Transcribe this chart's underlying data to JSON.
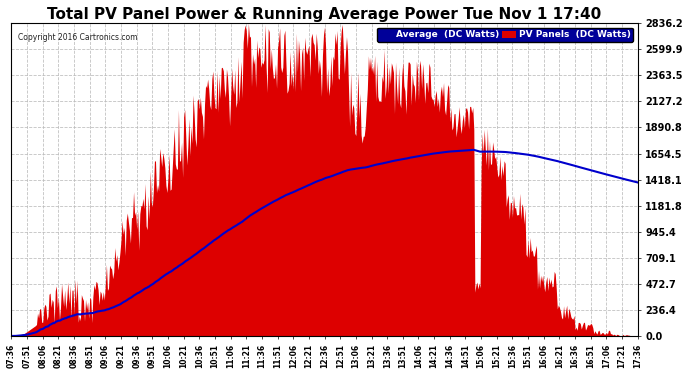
{
  "title": "Total PV Panel Power & Running Average Power Tue Nov 1 17:40",
  "copyright": "Copyright 2016 Cartronics.com",
  "yticks": [
    0.0,
    236.4,
    472.7,
    709.1,
    945.4,
    1181.8,
    1418.1,
    1654.5,
    1890.8,
    2127.2,
    2363.5,
    2599.9,
    2836.2
  ],
  "ymax": 2836.2,
  "ymin": 0.0,
  "legend_labels": [
    "Average  (DC Watts)",
    "PV Panels  (DC Watts)"
  ],
  "legend_colors_bg": [
    "#000099",
    "#cc0000"
  ],
  "pv_color": "#dd0000",
  "avg_color": "#0000cc",
  "bg_color": "#ffffff",
  "grid_color": "#aaaaaa",
  "title_fontsize": 11,
  "n_points": 601
}
